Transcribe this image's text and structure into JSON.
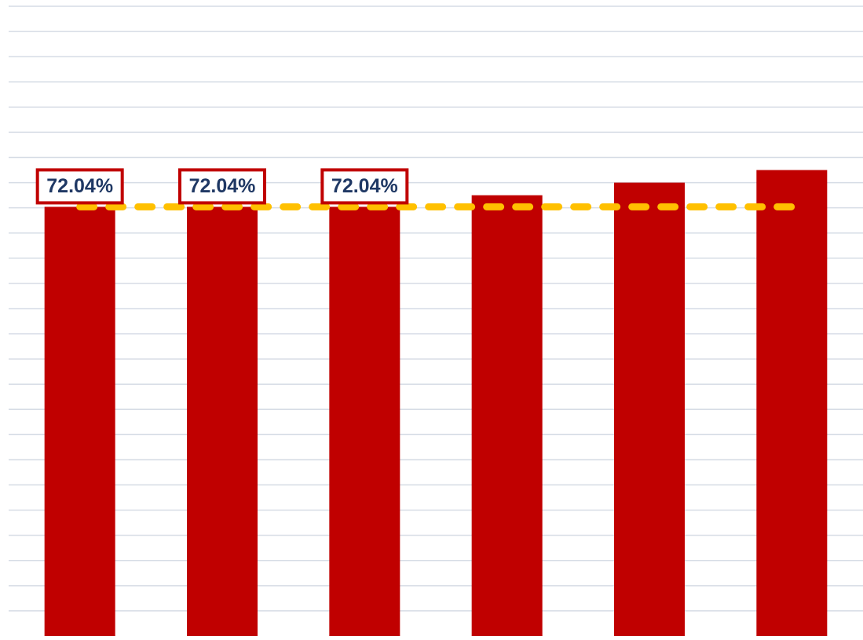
{
  "chart_data": {
    "type": "bar",
    "categories": [
      null,
      null,
      null,
      null,
      null,
      null
    ],
    "values": [
      72.04,
      72.04,
      72.04,
      72.5,
      73.0,
      73.5
    ],
    "value_labels": [
      "72.04%",
      "72.04%",
      "72.04%",
      null,
      null,
      null
    ],
    "color": "#c00000",
    "reference_line": {
      "value": 72.04,
      "color": "#ffc000",
      "style": "dashed"
    },
    "ylim": [
      55,
      80.25
    ],
    "yticks": [
      56,
      57,
      58,
      59,
      60,
      61,
      62,
      63,
      64,
      65,
      66,
      67,
      68,
      69,
      70,
      71,
      72,
      73,
      74,
      75,
      76,
      77,
      78,
      79,
      80
    ],
    "grid": true
  }
}
